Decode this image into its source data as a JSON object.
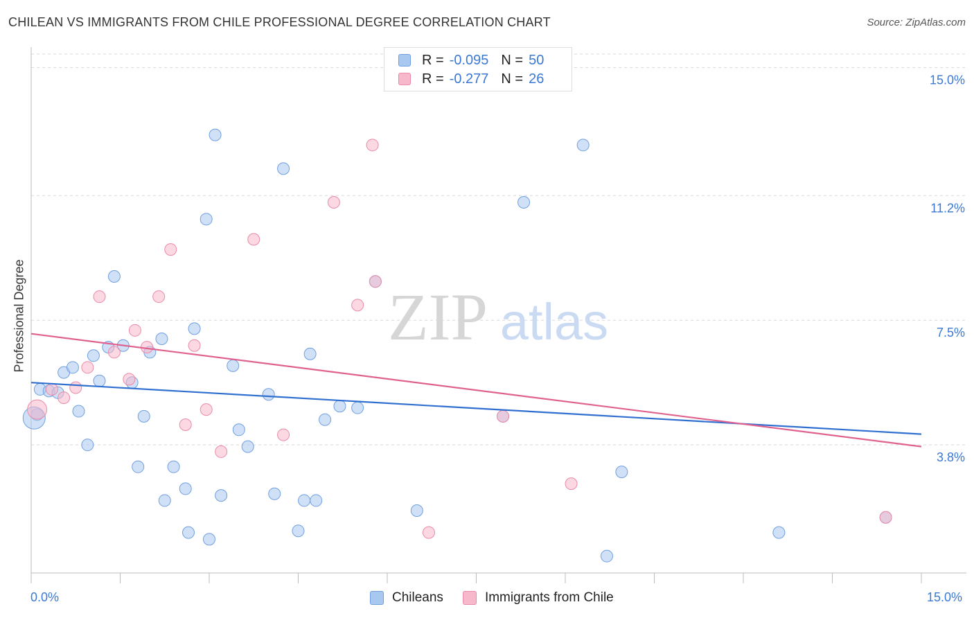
{
  "header": {
    "title": "CHILEAN VS IMMIGRANTS FROM CHILE PROFESSIONAL DEGREE CORRELATION CHART",
    "source": "Source: ZipAtlas.com"
  },
  "watermark": {
    "zip": "ZIP",
    "atlas": "atlas"
  },
  "legend_top": {
    "rows": [
      {
        "r_label": "R =",
        "r_value": "-0.095",
        "n_label": "N =",
        "n_value": "50"
      },
      {
        "r_label": "R =",
        "r_value": "-0.277",
        "n_label": "N =",
        "n_value": "26"
      }
    ]
  },
  "legend_bottom": {
    "items": [
      "Chileans",
      "Immigrants from Chile"
    ]
  },
  "axes": {
    "ylabel": "Professional Degree",
    "x_left_label": "0.0%",
    "x_right_label": "15.0%",
    "y_tick_labels": [
      "15.0%",
      "11.2%",
      "7.5%",
      "3.8%"
    ]
  },
  "colors": {
    "blue_fill": "#a9c8f0",
    "blue_stroke": "#6f9fe0",
    "blue_line": "#2f6fcf",
    "pink_fill": "#f7b8cb",
    "pink_stroke": "#ea8aa8",
    "pink_line": "#e0608e",
    "tick_text": "#3a78d4",
    "grid": "#d8d8d8"
  },
  "chart_data": {
    "type": "scatter",
    "title": "CHILEAN VS IMMIGRANTS FROM CHILE PROFESSIONAL DEGREE CORRELATION CHART",
    "xlabel": "",
    "ylabel": "Professional Degree",
    "xlim": [
      0,
      15
    ],
    "ylim": [
      0,
      15.4
    ],
    "y_ticks": [
      3.8,
      7.5,
      11.2,
      15.0
    ],
    "grid": true,
    "legend_position": "top-center",
    "series": [
      {
        "name": "Chileans",
        "r": -0.095,
        "n": 50,
        "trend": {
          "x": [
            0,
            15
          ],
          "y": [
            5.65,
            4.12
          ]
        },
        "points": [
          [
            0.1,
            4.7
          ],
          [
            0.15,
            5.45
          ],
          [
            0.3,
            5.4
          ],
          [
            0.45,
            5.35
          ],
          [
            0.55,
            5.95
          ],
          [
            0.7,
            6.1
          ],
          [
            0.8,
            4.8
          ],
          [
            0.95,
            3.8
          ],
          [
            1.05,
            6.45
          ],
          [
            1.15,
            5.7
          ],
          [
            1.3,
            6.7
          ],
          [
            1.4,
            8.8
          ],
          [
            1.55,
            6.75
          ],
          [
            1.7,
            5.65
          ],
          [
            1.8,
            3.15
          ],
          [
            1.9,
            4.65
          ],
          [
            2.0,
            6.55
          ],
          [
            2.2,
            6.95
          ],
          [
            2.25,
            2.15
          ],
          [
            2.4,
            3.15
          ],
          [
            2.6,
            2.5
          ],
          [
            2.65,
            1.2
          ],
          [
            2.75,
            7.25
          ],
          [
            2.95,
            10.5
          ],
          [
            3.0,
            1.0
          ],
          [
            3.1,
            13.0
          ],
          [
            3.2,
            2.3
          ],
          [
            3.4,
            6.15
          ],
          [
            3.5,
            4.25
          ],
          [
            3.65,
            3.75
          ],
          [
            4.0,
            5.3
          ],
          [
            4.1,
            2.35
          ],
          [
            4.25,
            12.0
          ],
          [
            4.5,
            1.25
          ],
          [
            4.6,
            2.15
          ],
          [
            4.7,
            6.5
          ],
          [
            4.8,
            2.15
          ],
          [
            4.95,
            4.55
          ],
          [
            5.2,
            4.95
          ],
          [
            5.5,
            4.9
          ],
          [
            5.8,
            8.65
          ],
          [
            6.5,
            1.85
          ],
          [
            7.95,
            4.65
          ],
          [
            8.3,
            11.0
          ],
          [
            9.3,
            12.7
          ],
          [
            9.7,
            0.5
          ],
          [
            9.95,
            3.0
          ],
          [
            12.6,
            1.2
          ],
          [
            14.4,
            1.65
          ],
          [
            0.05,
            4.6
          ]
        ]
      },
      {
        "name": "Immigrants from Chile",
        "r": -0.277,
        "n": 26,
        "trend": {
          "x": [
            0,
            15
          ],
          "y": [
            7.1,
            3.75
          ]
        },
        "points": [
          [
            0.1,
            4.85
          ],
          [
            0.35,
            5.45
          ],
          [
            0.55,
            5.2
          ],
          [
            0.75,
            5.5
          ],
          [
            0.95,
            6.1
          ],
          [
            1.15,
            8.2
          ],
          [
            1.4,
            6.55
          ],
          [
            1.65,
            5.75
          ],
          [
            1.75,
            7.2
          ],
          [
            1.95,
            6.7
          ],
          [
            2.15,
            8.2
          ],
          [
            2.35,
            9.6
          ],
          [
            2.6,
            4.4
          ],
          [
            2.75,
            6.75
          ],
          [
            2.95,
            4.85
          ],
          [
            3.2,
            3.6
          ],
          [
            3.75,
            9.9
          ],
          [
            4.25,
            4.1
          ],
          [
            5.1,
            11.0
          ],
          [
            5.5,
            7.95
          ],
          [
            5.75,
            12.7
          ],
          [
            6.7,
            1.2
          ],
          [
            7.95,
            4.65
          ],
          [
            9.1,
            2.65
          ],
          [
            14.4,
            1.65
          ],
          [
            5.8,
            8.65
          ]
        ]
      }
    ]
  }
}
